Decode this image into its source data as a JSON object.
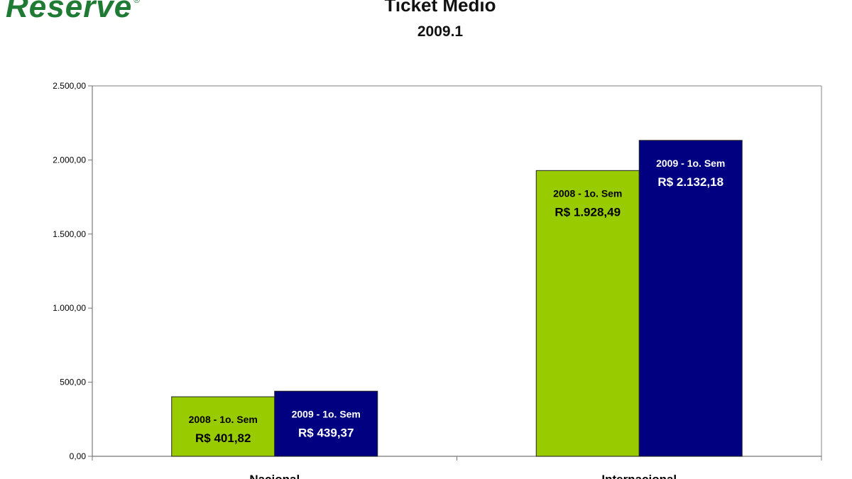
{
  "logo": {
    "text": "Reserve",
    "mark": "®"
  },
  "colors": {
    "series_2008": "#99cc00",
    "series_2009": "#000080",
    "logo": "#1f7a34"
  },
  "chart_data": {
    "type": "bar",
    "title": "Ticket Medio",
    "subtitle": "2009.1",
    "categories": [
      "Nacional",
      "Internacional"
    ],
    "series": [
      {
        "name": "2008 - 1o. Sem",
        "values": [
          401.82,
          1928.49
        ],
        "labels": [
          "R$ 401,82",
          "R$ 1.928,49"
        ],
        "color": "#99cc00",
        "text_color": "#000000"
      },
      {
        "name": "2009 - 1o. Sem",
        "values": [
          439.37,
          2132.18
        ],
        "labels": [
          "R$ 439,37",
          "R$ 2.132,18"
        ],
        "color": "#000080",
        "text_color": "#ffffff"
      }
    ],
    "ylim": [
      0,
      2500
    ],
    "yticks": [
      0,
      500,
      1000,
      1500,
      2000,
      2500
    ],
    "ytick_labels": [
      "0,00",
      "500,00",
      "1.000,00",
      "1.500,00",
      "2.000,00",
      "2.500,00"
    ],
    "grid": false,
    "legend": "none"
  }
}
